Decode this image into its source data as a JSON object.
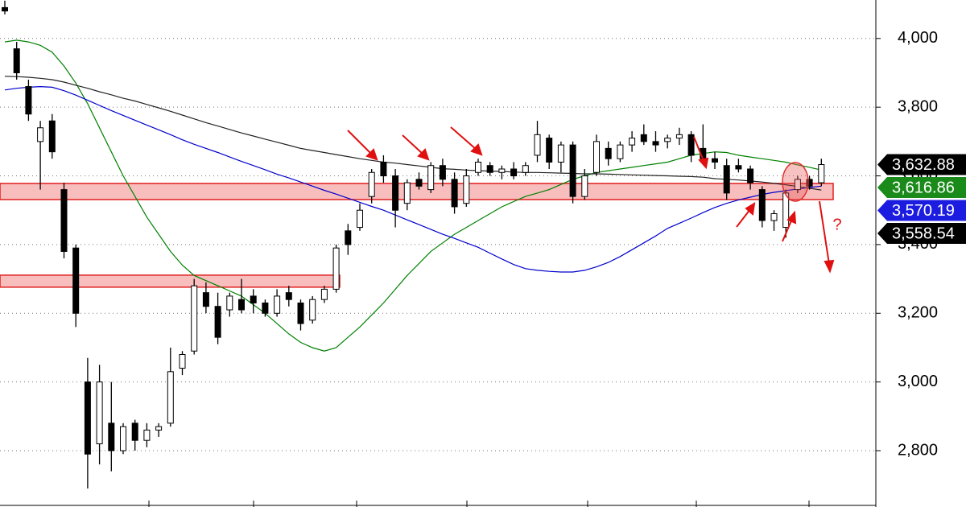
{
  "chart_data": {
    "type": "candlestick",
    "ylim": [
      2636,
      4112
    ],
    "yticks": [
      {
        "value": 2800,
        "label": "2,800"
      },
      {
        "value": 3000,
        "label": "3,000"
      },
      {
        "value": 3200,
        "label": "3,200"
      },
      {
        "value": 3400,
        "label": "3,400"
      },
      {
        "value": 3600,
        "label": "3,600"
      },
      {
        "value": 3800,
        "label": "3,800"
      },
      {
        "value": 4000,
        "label": "4,000"
      }
    ],
    "grid": true,
    "up_color": "#ffffff",
    "down_color": "#000000",
    "ohlc": [
      [
        4090,
        4110,
        4070,
        4080
      ],
      [
        3970,
        3990,
        3880,
        3900
      ],
      [
        3860,
        3880,
        3760,
        3780
      ],
      [
        3700,
        3760,
        3560,
        3740
      ],
      [
        3760,
        3780,
        3650,
        3670
      ],
      [
        3560,
        3580,
        3360,
        3380
      ],
      [
        3390,
        3400,
        3160,
        3200
      ],
      [
        3000,
        3070,
        2690,
        2790
      ],
      [
        2820,
        3050,
        2760,
        3000
      ],
      [
        2880,
        3000,
        2740,
        2800
      ],
      [
        2800,
        2880,
        2790,
        2870
      ],
      [
        2880,
        2890,
        2800,
        2830
      ],
      [
        2830,
        2880,
        2810,
        2860
      ],
      [
        2860,
        2880,
        2840,
        2870
      ],
      [
        2880,
        3100,
        2870,
        3030
      ],
      [
        3040,
        3090,
        3020,
        3080
      ],
      [
        3090,
        3300,
        3080,
        3280
      ],
      [
        3260,
        3290,
        3200,
        3220
      ],
      [
        3220,
        3260,
        3110,
        3130
      ],
      [
        3210,
        3260,
        3190,
        3250
      ],
      [
        3240,
        3300,
        3200,
        3210
      ],
      [
        3250,
        3270,
        3200,
        3230
      ],
      [
        3230,
        3240,
        3190,
        3200
      ],
      [
        3200,
        3270,
        3190,
        3250
      ],
      [
        3260,
        3280,
        3220,
        3240
      ],
      [
        3230,
        3240,
        3150,
        3170
      ],
      [
        3180,
        3250,
        3170,
        3240
      ],
      [
        3240,
        3280,
        3230,
        3270
      ],
      [
        3270,
        3400,
        3260,
        3390
      ],
      [
        3440,
        3460,
        3370,
        3400
      ],
      [
        3450,
        3520,
        3440,
        3500
      ],
      [
        3540,
        3620,
        3520,
        3610
      ],
      [
        3640,
        3660,
        3580,
        3600
      ],
      [
        3600,
        3620,
        3450,
        3500
      ],
      [
        3520,
        3590,
        3500,
        3580
      ],
      [
        3590,
        3610,
        3560,
        3570
      ],
      [
        3560,
        3640,
        3550,
        3630
      ],
      [
        3630,
        3650,
        3570,
        3590
      ],
      [
        3590,
        3610,
        3490,
        3510
      ],
      [
        3520,
        3620,
        3510,
        3600
      ],
      [
        3610,
        3650,
        3600,
        3640
      ],
      [
        3630,
        3640,
        3600,
        3610
      ],
      [
        3610,
        3630,
        3590,
        3620
      ],
      [
        3620,
        3640,
        3590,
        3600
      ],
      [
        3610,
        3640,
        3600,
        3630
      ],
      [
        3660,
        3760,
        3640,
        3720
      ],
      [
        3710,
        3720,
        3620,
        3640
      ],
      [
        3640,
        3700,
        3610,
        3690
      ],
      [
        3690,
        3700,
        3520,
        3540
      ],
      [
        3540,
        3620,
        3530,
        3600
      ],
      [
        3610,
        3720,
        3600,
        3700
      ],
      [
        3680,
        3700,
        3630,
        3650
      ],
      [
        3650,
        3700,
        3640,
        3690
      ],
      [
        3690,
        3730,
        3670,
        3710
      ],
      [
        3720,
        3750,
        3690,
        3700
      ],
      [
        3700,
        3730,
        3670,
        3690
      ],
      [
        3700,
        3720,
        3680,
        3710
      ],
      [
        3710,
        3740,
        3690,
        3720
      ],
      [
        3720,
        3730,
        3640,
        3660
      ],
      [
        3680,
        3750,
        3640,
        3650
      ],
      [
        3650,
        3670,
        3620,
        3640
      ],
      [
        3630,
        3650,
        3530,
        3550
      ],
      [
        3630,
        3650,
        3610,
        3620
      ],
      [
        3620,
        3630,
        3560,
        3580
      ],
      [
        3560,
        3570,
        3450,
        3470
      ],
      [
        3470,
        3500,
        3440,
        3490
      ],
      [
        3450,
        3560,
        3420,
        3550
      ],
      [
        3560,
        3600,
        3550,
        3590
      ],
      [
        3590,
        3600,
        3560,
        3570
      ],
      [
        3580,
        3650,
        3570,
        3632.88
      ]
    ],
    "lines": [
      {
        "color": "#008000",
        "values": [
          3990,
          3995,
          3990,
          3980,
          3960,
          3920,
          3870,
          3810,
          3740,
          3670,
          3600,
          3540,
          3480,
          3430,
          3380,
          3340,
          3310,
          3295,
          3280,
          3265,
          3250,
          3225,
          3200,
          3170,
          3140,
          3115,
          3100,
          3090,
          3100,
          3130,
          3160,
          3195,
          3230,
          3270,
          3310,
          3345,
          3380,
          3405,
          3430,
          3450,
          3470,
          3490,
          3510,
          3525,
          3540,
          3550,
          3560,
          3575,
          3590,
          3600,
          3610,
          3615,
          3620,
          3625,
          3630,
          3635,
          3640,
          3650,
          3660,
          3665,
          3670,
          3668,
          3660,
          3655,
          3650,
          3645,
          3640,
          3632,
          3625,
          3616.86
        ]
      },
      {
        "color": "#0000cc",
        "values": [
          3850,
          3855,
          3858,
          3860,
          3858,
          3848,
          3835,
          3820,
          3805,
          3790,
          3776,
          3762,
          3748,
          3734,
          3720,
          3705,
          3692,
          3680,
          3668,
          3655,
          3642,
          3630,
          3618,
          3605,
          3594,
          3582,
          3570,
          3558,
          3547,
          3535,
          3523,
          3511,
          3500,
          3486,
          3472,
          3458,
          3444,
          3430,
          3418,
          3405,
          3392,
          3375,
          3358,
          3342,
          3330,
          3325,
          3322,
          3320,
          3320,
          3325,
          3335,
          3348,
          3365,
          3385,
          3405,
          3425,
          3447,
          3462,
          3477,
          3493,
          3508,
          3520,
          3530,
          3538,
          3546,
          3552,
          3557,
          3562,
          3566,
          3570.19
        ]
      },
      {
        "color": "#222222",
        "values": [
          3890,
          3889,
          3887,
          3884,
          3880,
          3873,
          3864,
          3855,
          3845,
          3836,
          3826,
          3818,
          3808,
          3798,
          3788,
          3777,
          3766,
          3755,
          3745,
          3735,
          3725,
          3716,
          3707,
          3698,
          3689,
          3680,
          3674,
          3668,
          3662,
          3656,
          3650,
          3645,
          3640,
          3637,
          3633,
          3629,
          3625,
          3621,
          3619,
          3617,
          3615,
          3614,
          3613,
          3611,
          3610,
          3610,
          3609,
          3608,
          3607,
          3606,
          3606,
          3605,
          3604,
          3603,
          3602,
          3601,
          3600,
          3599,
          3598,
          3596,
          3592,
          3590,
          3588,
          3585,
          3582,
          3578,
          3574,
          3569,
          3564,
          3558.54
        ]
      }
    ],
    "zones": [
      [
        3531,
        3578
      ],
      [
        3276,
        3311
      ]
    ],
    "price_tags": {
      "values": [
        3632.88,
        3616.86,
        3570.19,
        3558.54
      ],
      "value_labels": [
        "3,632.88",
        "3,616.86",
        "3,570.19",
        "3,558.54"
      ],
      "colors": [
        "#000000",
        "#1a8a1a",
        "#1c1ce0",
        "#000000"
      ]
    },
    "annotation": "?"
  }
}
